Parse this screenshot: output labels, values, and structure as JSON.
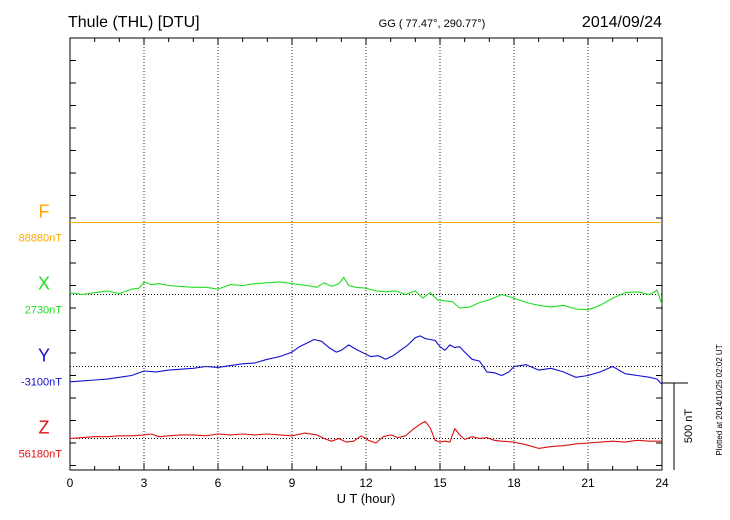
{
  "chart_data": {
    "type": "line",
    "title_left": "Thule (THL)  [DTU]",
    "title_center": "GG ( 77.47°, 290.77°)",
    "title_right": "2014/09/24",
    "xlabel": "U T (hour)",
    "xlim": [
      0,
      24
    ],
    "xticks": [
      0,
      3,
      6,
      9,
      12,
      15,
      18,
      21,
      24
    ],
    "ylim": [
      -1375,
      1025
    ],
    "ytick_minor_step": 125,
    "scale_bar_label": "500 nT",
    "scale_bar_nT": 500,
    "footer_note": "Plotted at 2014/10/25 02:02 UT",
    "colors": {
      "F": "#ffaa00",
      "X": "#22dd22",
      "Y": "#1111cc",
      "Z": "#dd1111",
      "grid": "#333333"
    },
    "series": [
      {
        "name": "F",
        "baseline_label": "88880nT",
        "offset": 0,
        "x": [
          0,
          24
        ],
        "values": [
          0,
          0
        ]
      },
      {
        "name": "X",
        "baseline_label": "2730nT",
        "offset": -400,
        "x": [
          0,
          0.5,
          1,
          1.5,
          2,
          2.5,
          2.8,
          3,
          3.3,
          3.6,
          4,
          4.5,
          5,
          5.5,
          6,
          6.5,
          7,
          7.5,
          8,
          8.5,
          9,
          9.3,
          9.6,
          10,
          10.3,
          10.6,
          10.9,
          11.1,
          11.3,
          11.6,
          12,
          12.4,
          12.8,
          13.2,
          13.6,
          14,
          14.3,
          14.6,
          14.9,
          15.2,
          15.5,
          15.8,
          16.2,
          16.6,
          17,
          17.5,
          18,
          18.5,
          19,
          19.5,
          20,
          20.5,
          21,
          21.5,
          22,
          22.5,
          23,
          23.5,
          23.8,
          24
        ],
        "values": [
          10,
          0,
          10,
          20,
          5,
          30,
          35,
          70,
          55,
          60,
          50,
          45,
          40,
          40,
          30,
          55,
          50,
          60,
          65,
          70,
          60,
          55,
          50,
          40,
          65,
          45,
          60,
          95,
          50,
          40,
          35,
          20,
          15,
          20,
          0,
          20,
          -20,
          10,
          -30,
          -35,
          -40,
          -75,
          -70,
          -45,
          -30,
          0,
          -20,
          -45,
          -60,
          -70,
          -60,
          -80,
          -85,
          -60,
          -20,
          10,
          15,
          0,
          25,
          -55
        ]
      },
      {
        "name": "Y",
        "baseline_label": "-3100nT",
        "offset": -800,
        "x": [
          0,
          0.5,
          1,
          1.5,
          2,
          2.5,
          3,
          3.5,
          4,
          4.5,
          5,
          5.5,
          6,
          6.5,
          7,
          7.5,
          8,
          8.5,
          9,
          9.3,
          9.6,
          9.9,
          10.2,
          10.5,
          10.8,
          11,
          11.3,
          11.6,
          11.9,
          12.2,
          12.5,
          12.8,
          13.1,
          13.4,
          13.7,
          14,
          14.2,
          14.4,
          14.6,
          14.8,
          15,
          15.2,
          15.4,
          15.6,
          15.8,
          16,
          16.3,
          16.6,
          16.9,
          17.2,
          17.5,
          17.8,
          18,
          18.5,
          19,
          19.5,
          20,
          20.5,
          21,
          21.5,
          22,
          22.5,
          23,
          23.5,
          23.8,
          24
        ],
        "values": [
          -85,
          -80,
          -75,
          -70,
          -60,
          -50,
          -25,
          -30,
          -20,
          -15,
          -10,
          0,
          -5,
          5,
          15,
          20,
          40,
          55,
          80,
          110,
          130,
          150,
          140,
          105,
          80,
          90,
          120,
          95,
          75,
          55,
          60,
          40,
          60,
          90,
          120,
          160,
          170,
          155,
          150,
          145,
          110,
          90,
          120,
          105,
          110,
          80,
          40,
          30,
          -30,
          -35,
          -50,
          -30,
          0,
          10,
          -20,
          -10,
          -30,
          -60,
          -50,
          -30,
          0,
          -40,
          -50,
          -60,
          -70,
          -100
        ]
      },
      {
        "name": "Z",
        "baseline_label": "56180nT",
        "offset": -1200,
        "x": [
          0,
          0.5,
          1,
          1.5,
          2,
          2.5,
          3,
          3.3,
          3.6,
          4,
          4.5,
          5,
          5.5,
          6,
          6.5,
          7,
          7.5,
          8,
          8.5,
          9,
          9.5,
          10,
          10.3,
          10.6,
          10.9,
          11.2,
          11.5,
          11.8,
          12.1,
          12.4,
          12.7,
          13,
          13.3,
          13.6,
          13.9,
          14.2,
          14.4,
          14.6,
          14.8,
          15,
          15.2,
          15.4,
          15.6,
          15.8,
          16,
          16.3,
          16.6,
          16.9,
          17.2,
          17.5,
          18,
          18.5,
          19,
          19.5,
          20,
          20.5,
          21,
          21.5,
          22,
          22.5,
          23,
          23.5,
          24
        ],
        "values": [
          0,
          5,
          10,
          10,
          15,
          15,
          20,
          25,
          10,
          15,
          20,
          20,
          15,
          25,
          20,
          25,
          20,
          25,
          20,
          15,
          30,
          20,
          0,
          -15,
          0,
          -20,
          -15,
          15,
          -10,
          -25,
          10,
          20,
          5,
          15,
          50,
          80,
          95,
          60,
          -10,
          -20,
          -15,
          -20,
          55,
          20,
          -5,
          10,
          0,
          5,
          -10,
          -15,
          -20,
          -35,
          -55,
          -45,
          -40,
          -30,
          -25,
          -20,
          -15,
          -20,
          -10,
          -15,
          -15
        ]
      }
    ]
  }
}
